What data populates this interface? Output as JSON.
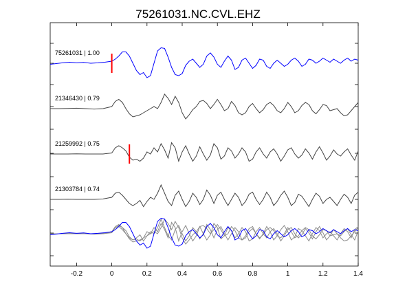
{
  "chart_data": {
    "type": "line",
    "title": "75261031.NC.CVL.EHZ",
    "xlabel": "",
    "ylabel": "",
    "xlim": [
      -0.35,
      1.4
    ],
    "xticks": [
      "-0.2",
      "0",
      "0.2",
      "0.4",
      "0.6",
      "0.8",
      "1",
      "1.2",
      "1.4"
    ],
    "xtick_values": [
      -0.2,
      0,
      0.2,
      0.4,
      0.6,
      0.8,
      1.0,
      1.2,
      1.4
    ],
    "grid": false,
    "colors": {
      "primary_trace": "#0000ff",
      "correlated_trace": "#444444",
      "overlay_trace": "#8c8c8c",
      "pick_marker": "#ff0000",
      "axes": "#000000"
    },
    "series": [
      {
        "name": "75261031 | 1.00",
        "color": "#0000ff",
        "pick_time": 0.0,
        "x": [
          -0.35,
          -0.32,
          -0.28,
          -0.24,
          -0.2,
          -0.16,
          -0.12,
          -0.08,
          -0.04,
          0.0,
          0.02,
          0.04,
          0.06,
          0.08,
          0.1,
          0.12,
          0.14,
          0.16,
          0.18,
          0.2,
          0.22,
          0.24,
          0.26,
          0.28,
          0.3,
          0.32,
          0.34,
          0.36,
          0.38,
          0.4,
          0.42,
          0.44,
          0.46,
          0.48,
          0.5,
          0.52,
          0.54,
          0.56,
          0.58,
          0.6,
          0.62,
          0.64,
          0.66,
          0.68,
          0.7,
          0.72,
          0.74,
          0.76,
          0.78,
          0.8,
          0.82,
          0.84,
          0.86,
          0.88,
          0.9,
          0.92,
          0.94,
          0.96,
          0.98,
          1.0,
          1.02,
          1.04,
          1.06,
          1.08,
          1.1,
          1.12,
          1.14,
          1.16,
          1.18,
          1.2,
          1.22,
          1.24,
          1.26,
          1.28,
          1.3,
          1.32,
          1.34,
          1.36,
          1.38,
          1.4
        ],
        "y": [
          -0.05,
          -0.02,
          0.02,
          0.05,
          0.02,
          0.04,
          0.0,
          0.02,
          0.05,
          0.1,
          0.2,
          0.35,
          0.55,
          0.55,
          0.35,
          0.0,
          -0.35,
          -0.55,
          -0.45,
          -0.7,
          -0.6,
          0.0,
          0.6,
          0.75,
          0.72,
          0.3,
          -0.2,
          -0.55,
          -0.6,
          -0.5,
          -0.1,
          0.1,
          0.2,
          0.0,
          -0.2,
          -0.05,
          0.35,
          0.5,
          0.3,
          -0.05,
          -0.2,
          0.1,
          0.35,
          0.15,
          -0.3,
          -0.2,
          0.15,
          0.25,
          0.0,
          -0.25,
          -0.1,
          0.2,
          0.15,
          -0.15,
          -0.25,
          0.0,
          0.15,
          0.0,
          -0.15,
          -0.05,
          0.15,
          0.25,
          0.1,
          -0.15,
          -0.05,
          0.2,
          0.15,
          0.0,
          0.1,
          0.25,
          0.15,
          0.05,
          0.2,
          0.1,
          0.0,
          0.15,
          0.25,
          0.1,
          0.2,
          0.15
        ]
      },
      {
        "name": "21346430 | 0.79",
        "color": "#444444",
        "x": [
          -0.35,
          -0.3,
          -0.25,
          -0.2,
          -0.15,
          -0.1,
          -0.05,
          0.0,
          0.02,
          0.04,
          0.06,
          0.08,
          0.1,
          0.12,
          0.14,
          0.16,
          0.18,
          0.2,
          0.22,
          0.24,
          0.26,
          0.28,
          0.3,
          0.32,
          0.34,
          0.36,
          0.38,
          0.4,
          0.42,
          0.44,
          0.46,
          0.48,
          0.5,
          0.52,
          0.54,
          0.56,
          0.58,
          0.6,
          0.62,
          0.64,
          0.66,
          0.68,
          0.7,
          0.72,
          0.74,
          0.76,
          0.78,
          0.8,
          0.82,
          0.84,
          0.86,
          0.88,
          0.9,
          0.92,
          0.94,
          0.96,
          0.98,
          1.0,
          1.02,
          1.04,
          1.06,
          1.08,
          1.1,
          1.12,
          1.14,
          1.16,
          1.18,
          1.2,
          1.22,
          1.24,
          1.26,
          1.28,
          1.3,
          1.32,
          1.34,
          1.36,
          1.38,
          1.4
        ],
        "y": [
          0.0,
          0.0,
          0.01,
          0.02,
          0.0,
          -0.02,
          0.0,
          0.1,
          0.35,
          0.45,
          0.3,
          0.0,
          -0.25,
          -0.4,
          -0.35,
          -0.3,
          -0.2,
          -0.1,
          0.0,
          0.1,
          0.0,
          0.3,
          0.7,
          0.5,
          0.2,
          0.6,
          0.3,
          -0.2,
          -0.5,
          -0.3,
          -0.05,
          0.1,
          0.35,
          0.4,
          0.25,
          0.0,
          0.2,
          0.45,
          0.2,
          -0.1,
          0.0,
          0.35,
          0.15,
          -0.2,
          -0.3,
          -0.2,
          0.1,
          0.25,
          0.0,
          -0.2,
          -0.05,
          0.2,
          0.3,
          0.15,
          -0.1,
          -0.2,
          0.0,
          0.3,
          0.1,
          -0.2,
          -0.1,
          0.15,
          0.3,
          0.2,
          -0.1,
          -0.25,
          -0.05,
          0.2,
          0.15,
          -0.1,
          -0.05,
          0.0,
          -0.2,
          -0.35,
          -0.3,
          -0.1,
          0.1,
          0.3
        ]
      },
      {
        "name": "21259992 | 0.75",
        "color": "#444444",
        "pick_time": 0.1,
        "x": [
          -0.35,
          -0.3,
          -0.25,
          -0.2,
          -0.15,
          -0.1,
          -0.05,
          0.0,
          0.02,
          0.04,
          0.06,
          0.08,
          0.1,
          0.12,
          0.14,
          0.16,
          0.18,
          0.2,
          0.22,
          0.24,
          0.26,
          0.28,
          0.3,
          0.32,
          0.34,
          0.36,
          0.38,
          0.4,
          0.42,
          0.44,
          0.46,
          0.48,
          0.5,
          0.52,
          0.54,
          0.56,
          0.58,
          0.6,
          0.62,
          0.64,
          0.66,
          0.68,
          0.7,
          0.72,
          0.74,
          0.76,
          0.78,
          0.8,
          0.82,
          0.84,
          0.86,
          0.88,
          0.9,
          0.92,
          0.94,
          0.96,
          0.98,
          1.0,
          1.02,
          1.04,
          1.06,
          1.08,
          1.1,
          1.12,
          1.14,
          1.16,
          1.18,
          1.2,
          1.22,
          1.24,
          1.26,
          1.28,
          1.3,
          1.32,
          1.34,
          1.36,
          1.38,
          1.4
        ],
        "y": [
          0.0,
          0.0,
          0.0,
          0.01,
          0.0,
          0.0,
          0.0,
          0.05,
          0.3,
          0.4,
          0.3,
          0.15,
          -0.15,
          -0.3,
          -0.25,
          -0.35,
          -0.2,
          0.1,
          0.0,
          0.3,
          0.1,
          0.5,
          0.2,
          -0.2,
          0.55,
          0.3,
          -0.35,
          0.1,
          0.4,
          0.0,
          -0.35,
          -0.1,
          0.35,
          0.0,
          -0.3,
          -0.05,
          0.5,
          0.3,
          -0.25,
          -0.1,
          0.3,
          0.15,
          -0.2,
          0.0,
          0.3,
          0.1,
          -0.35,
          -0.25,
          0.1,
          0.3,
          0.0,
          -0.2,
          0.1,
          0.25,
          0.0,
          -0.35,
          -0.1,
          0.2,
          0.3,
          0.0,
          -0.2,
          -0.05,
          0.25,
          0.05,
          -0.25,
          0.1,
          0.35,
          0.05,
          -0.3,
          -0.1,
          0.2,
          0.0,
          -0.1,
          0.1,
          0.25,
          -0.05,
          -0.3,
          0.15
        ]
      },
      {
        "name": "21303784 | 0.74",
        "color": "#444444",
        "x": [
          -0.35,
          -0.3,
          -0.25,
          -0.2,
          -0.15,
          -0.1,
          -0.05,
          0.0,
          0.02,
          0.04,
          0.06,
          0.08,
          0.1,
          0.12,
          0.14,
          0.16,
          0.18,
          0.2,
          0.22,
          0.24,
          0.26,
          0.28,
          0.3,
          0.32,
          0.34,
          0.36,
          0.38,
          0.4,
          0.42,
          0.44,
          0.46,
          0.48,
          0.5,
          0.52,
          0.54,
          0.56,
          0.58,
          0.6,
          0.62,
          0.64,
          0.66,
          0.68,
          0.7,
          0.72,
          0.74,
          0.76,
          0.78,
          0.8,
          0.82,
          0.84,
          0.86,
          0.88,
          0.9,
          0.92,
          0.94,
          0.96,
          0.98,
          1.0,
          1.02,
          1.04,
          1.06,
          1.08,
          1.1,
          1.12,
          1.14,
          1.16,
          1.18,
          1.2,
          1.22,
          1.24,
          1.26,
          1.28,
          1.3,
          1.32,
          1.34,
          1.36,
          1.38,
          1.4
        ],
        "y": [
          0.0,
          0.0,
          0.01,
          0.0,
          0.0,
          0.0,
          0.02,
          0.1,
          0.3,
          0.35,
          0.2,
          0.0,
          -0.2,
          -0.3,
          -0.2,
          -0.05,
          -0.35,
          -0.1,
          0.1,
          0.0,
          0.3,
          0.7,
          0.3,
          -0.1,
          -0.3,
          0.2,
          0.4,
          0.0,
          -0.35,
          -0.1,
          0.3,
          0.1,
          -0.25,
          0.0,
          0.45,
          0.2,
          -0.2,
          0.2,
          0.35,
          0.0,
          -0.3,
          0.0,
          0.3,
          0.1,
          -0.3,
          -0.1,
          0.25,
          0.35,
          0.0,
          -0.25,
          0.0,
          0.35,
          0.1,
          -0.3,
          -0.1,
          0.2,
          0.4,
          0.1,
          -0.3,
          -0.15,
          0.25,
          0.15,
          -0.1,
          -0.35,
          0.0,
          0.3,
          0.15,
          -0.2,
          0.0,
          0.1,
          -0.1,
          -0.3,
          0.0,
          0.25,
          0.1,
          -0.2,
          0.2,
          0.35
        ]
      }
    ]
  }
}
